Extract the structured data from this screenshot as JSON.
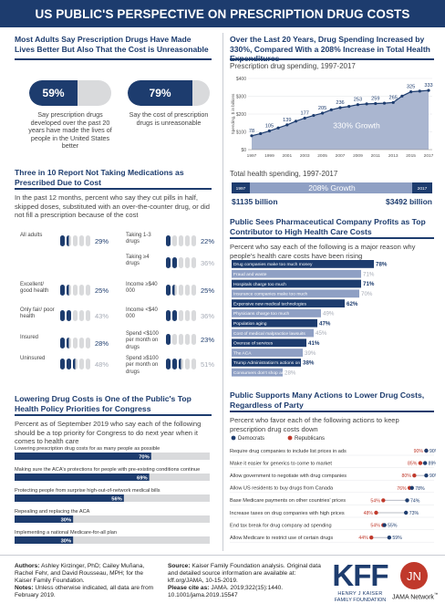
{
  "header": {
    "title": "US PUBLIC'S PERSPECTIVE ON PRESCRIPTION DRUG COSTS"
  },
  "panel1": {
    "title": "Most Adults Say Prescription Drugs Have Made Lives Better But Also That the Cost is Unreasonable",
    "items": [
      {
        "value": "59%",
        "fraction": 0.59,
        "caption": "Say prescription drugs developed over the past 20 years have made the lives of people in the United States better"
      },
      {
        "value": "79%",
        "fraction": 0.79,
        "caption": "Say the cost of prescription drugs is unreasonable"
      }
    ]
  },
  "panel2": {
    "title": "Over the Last 20 Years, Drug Spending Increased by 330%, Compared With a 208% Increase in Total Health Expenditures",
    "subtitle": "Prescription drug spending, 1997-2017",
    "chart_data": {
      "type": "area",
      "ylabel": "Spending, $ in billions",
      "y_ticks": [
        "$0",
        "$100",
        "$200",
        "$300",
        "$400"
      ],
      "ylim": [
        0,
        400
      ],
      "x": [
        "1997",
        "1998",
        "1999",
        "2000",
        "2001",
        "2002",
        "2003",
        "2004",
        "2005",
        "2006",
        "2007",
        "2008",
        "2009",
        "2010",
        "2011",
        "2012",
        "2013",
        "2014",
        "2015",
        "2016",
        "2017"
      ],
      "values": [
        78,
        90,
        105,
        122,
        139,
        160,
        177,
        192,
        205,
        224,
        236,
        243,
        253,
        257,
        259,
        261,
        265,
        301,
        325,
        329,
        333
      ],
      "point_labels": [
        {
          "x": "1997",
          "label": "78"
        },
        {
          "x": "1999",
          "label": "105"
        },
        {
          "x": "2001",
          "label": "139"
        },
        {
          "x": "2003",
          "label": "177"
        },
        {
          "x": "2005",
          "label": "205"
        },
        {
          "x": "2007",
          "label": "236"
        },
        {
          "x": "2009",
          "label": "253"
        },
        {
          "x": "2011",
          "label": "259"
        },
        {
          "x": "2013",
          "label": "265"
        },
        {
          "x": "2015",
          "label": "325"
        },
        {
          "x": "2017",
          "label": "333"
        }
      ],
      "x_tick_labels": [
        "1997",
        "1999",
        "2001",
        "2003",
        "2005",
        "2007",
        "2009",
        "2011",
        "2013",
        "2015",
        "2017"
      ],
      "annotation": "330% Growth"
    },
    "total": {
      "label": "Total health spending, 1997-2017",
      "growth": "208% Growth",
      "start_year": "1997",
      "end_year": "2017",
      "start_value": "$1135 billion",
      "end_value": "$3492 billion"
    }
  },
  "panel3": {
    "title": "Three in 10 Report Not Taking Medications as Prescribed Due to Cost",
    "intro": "In the past 12 months, percent who say they cut pills in half, skipped doses, substituted with an over-the-counter drug, or did not fill a prescription because of the cost",
    "rows": [
      {
        "label": "All adults",
        "value": "29%",
        "fraction": 0.29,
        "light": false
      },
      {
        "label": "Taking 1-3 drugs",
        "value": "22%",
        "fraction": 0.22,
        "light": false
      },
      {
        "label": "Taking ≥4 drugs",
        "value": "36%",
        "fraction": 0.36,
        "light": true
      },
      {
        "label": "Excellent/ good health",
        "value": "25%",
        "fraction": 0.25,
        "light": false
      },
      {
        "label": "Income ≥$40 000",
        "value": "25%",
        "fraction": 0.25,
        "light": false
      },
      {
        "label": "Only fair/ poor health",
        "value": "43%",
        "fraction": 0.43,
        "light": true
      },
      {
        "label": "Income <$40 000",
        "value": "36%",
        "fraction": 0.36,
        "light": true
      },
      {
        "label": "Insured",
        "value": "28%",
        "fraction": 0.28,
        "light": false
      },
      {
        "label": "Spend <$100 per month on drugs",
        "value": "23%",
        "fraction": 0.23,
        "light": false
      },
      {
        "label": "Uninsured",
        "value": "48%",
        "fraction": 0.48,
        "light": true
      },
      {
        "label": "Spend ≥$100 per month on drugs",
        "value": "51%",
        "fraction": 0.51,
        "light": true
      }
    ]
  },
  "panel4": {
    "title": "Public Sees Pharmaceutical Company Profits as Top Contributor to High Health Care Costs",
    "intro": "Percent who say each of the following is a major reason why people's health care costs have been rising",
    "chart_data": {
      "type": "bar",
      "categories": [
        "Drug companies make too much money",
        "Fraud and waste",
        "Hospitals charge too much",
        "Insurance companies make too much",
        "Expensive new medical technologies",
        "Physicians charge too much",
        "Population aging",
        "Cost of medical malpractice lawsuits",
        "Overuse of services",
        "The ACA",
        "Trump Administration's actions on health",
        "Consumers don't shop around"
      ],
      "values": [
        78,
        71,
        71,
        70,
        62,
        49,
        47,
        45,
        41,
        39,
        38,
        28
      ],
      "labels": [
        "78%",
        "71%",
        "71%",
        "70%",
        "62%",
        "49%",
        "47%",
        "45%",
        "41%",
        "39%",
        "38%",
        "28%"
      ],
      "highlight": [
        true,
        false,
        true,
        false,
        true,
        false,
        true,
        false,
        true,
        false,
        true,
        false
      ],
      "xlim": [
        0,
        100
      ]
    }
  },
  "panel5": {
    "title": "Lowering Drug Costs is One of the Public's Top Health Policy Priorities for Congress",
    "intro": "Percent as of September 2019 who say each of the following should be a top priority for Congress to do next year when it comes to health care",
    "chart_data": {
      "type": "bar",
      "categories": [
        "Lowering prescription drug costs for as many people as possible",
        "Making sure the ACA's protections for people with pre-existing conditions continue",
        "Protecting people from surprise high-out-of-network medical bills",
        "Repealing and replacing the ACA",
        "Implementing a national Medicare-for-all plan"
      ],
      "values": [
        70,
        69,
        56,
        30,
        30
      ],
      "labels": [
        "70%",
        "69%",
        "56%",
        "30%",
        "30%"
      ],
      "xlim": [
        0,
        100
      ]
    }
  },
  "panel6": {
    "title": "Public Supports Many Actions to Lower Drug Costs, Regardless of Party",
    "intro": "Percent who favor each of the following actions to keep prescription drug costs down",
    "legend": [
      {
        "name": "Democrats",
        "color": "#1d3c6e"
      },
      {
        "name": "Republicans",
        "color": "#c0392b"
      }
    ],
    "chart_data": {
      "type": "scatter",
      "categories": [
        "Require drug companies to include list prices in ads",
        "Make it easier for generics to come to market",
        "Allow government to negotiate with drug companies",
        "Allow US residents to buy drugs from Canada",
        "Base Medicare payments on other countries' prices",
        "Increase taxes on drug companies with high prices",
        "End tax break for drug company ad spending",
        "Allow Medicare to restrict use of certain drugs"
      ],
      "series": [
        {
          "name": "Democrats",
          "values": [
            90,
            89,
            90,
            78,
            74,
            73,
            55,
            59
          ],
          "labels": [
            "90%",
            "89%",
            "90%",
            "78%",
            "74%",
            "73%",
            "55%",
            "59%"
          ]
        },
        {
          "name": "Republicans",
          "values": [
            90,
            85,
            80,
            76,
            54,
            48,
            54,
            44
          ],
          "labels": [
            "90%",
            "85%",
            "80%",
            "76%",
            "54%",
            "48%",
            "54%",
            "44%"
          ]
        }
      ],
      "xlim": [
        40,
        95
      ]
    }
  },
  "footer": {
    "authors_label": "Authors:",
    "authors": "Ashley Kirzinger, PhD; Cailey Muñana, Rachel Fehr, and David Rousseau, MPH; for the Kaiser Family Foundation.",
    "notes_label": "Notes:",
    "notes": "Unless otherwise indicated, all data are from February 2019.",
    "source_label": "Source:",
    "source": "Kaiser Family Foundation analysis. Original data and detailed source information are available at: kff.org/JAMA, 10-15-2019.",
    "cite_label": "Please cite as:",
    "cite": "JAMA. 2019;322(15):1440. 10.1001/jama.2019.15547",
    "kff_logo": "KFF",
    "kff_sub1": "HENRY J KAISER",
    "kff_sub2": "FAMILY FOUNDATION",
    "jn_logo": "JN",
    "jama_logo": "JAMA Network",
    "tm": "™"
  }
}
